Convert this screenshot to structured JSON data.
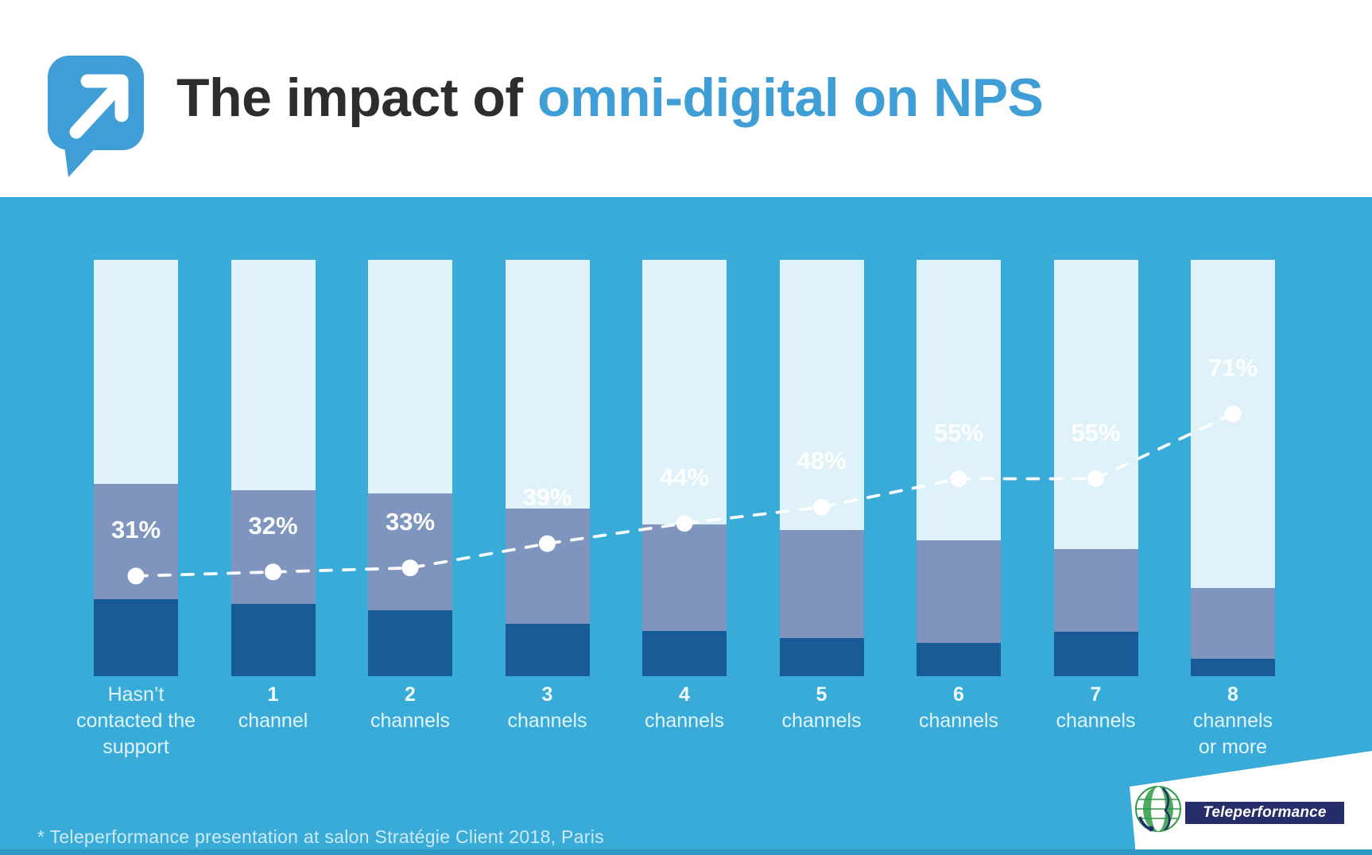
{
  "header": {
    "title_prefix": "The impact of ",
    "title_highlight": "omni-digital on NPS"
  },
  "icons": {
    "header_logo": "speech-bubble-with-up-right-arrow-icon",
    "brand_logo": "teleperformance-globe-icon"
  },
  "chart_data": {
    "type": "bar",
    "subtype": "stacked-columns-with-dashed-line-overlay",
    "title": "The impact of omni-digital on NPS",
    "categories": [
      "Hasn’t contacted the support",
      "1 channel",
      "2 channels",
      "3 channels",
      "4 channels",
      "5 channels",
      "6 channels",
      "7 channels",
      "8 channels or more"
    ],
    "categories_lines": [
      [
        "Hasn’t",
        "contacted the",
        "support"
      ],
      [
        "1",
        "channel"
      ],
      [
        "2",
        "channels"
      ],
      [
        "3",
        "channels"
      ],
      [
        "4",
        "channels"
      ],
      [
        "5",
        "channels"
      ],
      [
        "6",
        "channels"
      ],
      [
        "7",
        "channels"
      ],
      [
        "8",
        "channels",
        "or more"
      ]
    ],
    "series": [
      {
        "name": "NPS",
        "type": "line",
        "unit": "%",
        "style": "white dashed line with round markers",
        "values": [
          31,
          32,
          33,
          39,
          44,
          48,
          55,
          55,
          71
        ],
        "labels": [
          "31%",
          "32%",
          "33%",
          "39%",
          "44%",
          "48%",
          "55%",
          "55%",
          "71%"
        ]
      },
      {
        "name": "top-segment-light",
        "type": "bar-stack",
        "unit": "% of column height (estimated from pixels, unlabeled)",
        "values": [
          53.8,
          55.3,
          56.1,
          59.7,
          63.5,
          64.9,
          67.4,
          69.5,
          78.8
        ]
      },
      {
        "name": "middle-segment-medium",
        "type": "bar-stack",
        "unit": "% of column height (estimated from pixels, unlabeled)",
        "values": [
          27.7,
          27.3,
          28.1,
          27.7,
          25.6,
          26.0,
          24.6,
          19.8,
          17.0
        ]
      },
      {
        "name": "bottom-segment-dark",
        "type": "bar-stack",
        "unit": "% of column height (estimated from pixels, unlabeled)",
        "values": [
          18.5,
          17.4,
          15.8,
          12.6,
          10.9,
          9.1,
          8.0,
          10.7,
          4.2
        ]
      }
    ],
    "legend": "none",
    "gridlines": false,
    "value_axis": "none (only NPS % data labels shown)"
  },
  "footnote": "* Teleperformance presentation at salon Stratégie Client 2018, Paris",
  "brand": {
    "wordmark": "Teleperformance"
  },
  "colors": {
    "background": "#38ABD8",
    "bar_light": "#DFF1F9",
    "bar_medium": "#8095BD",
    "bar_dark": "#175B97",
    "accent_blue": "#3F9ED6",
    "title_dark": "#2D2D2D",
    "wordmark_navy": "#252E6A",
    "globe_green": "#2E9B44",
    "bottom_strip": "#2B99C4",
    "line_and_labels": "#FFFFFF"
  }
}
